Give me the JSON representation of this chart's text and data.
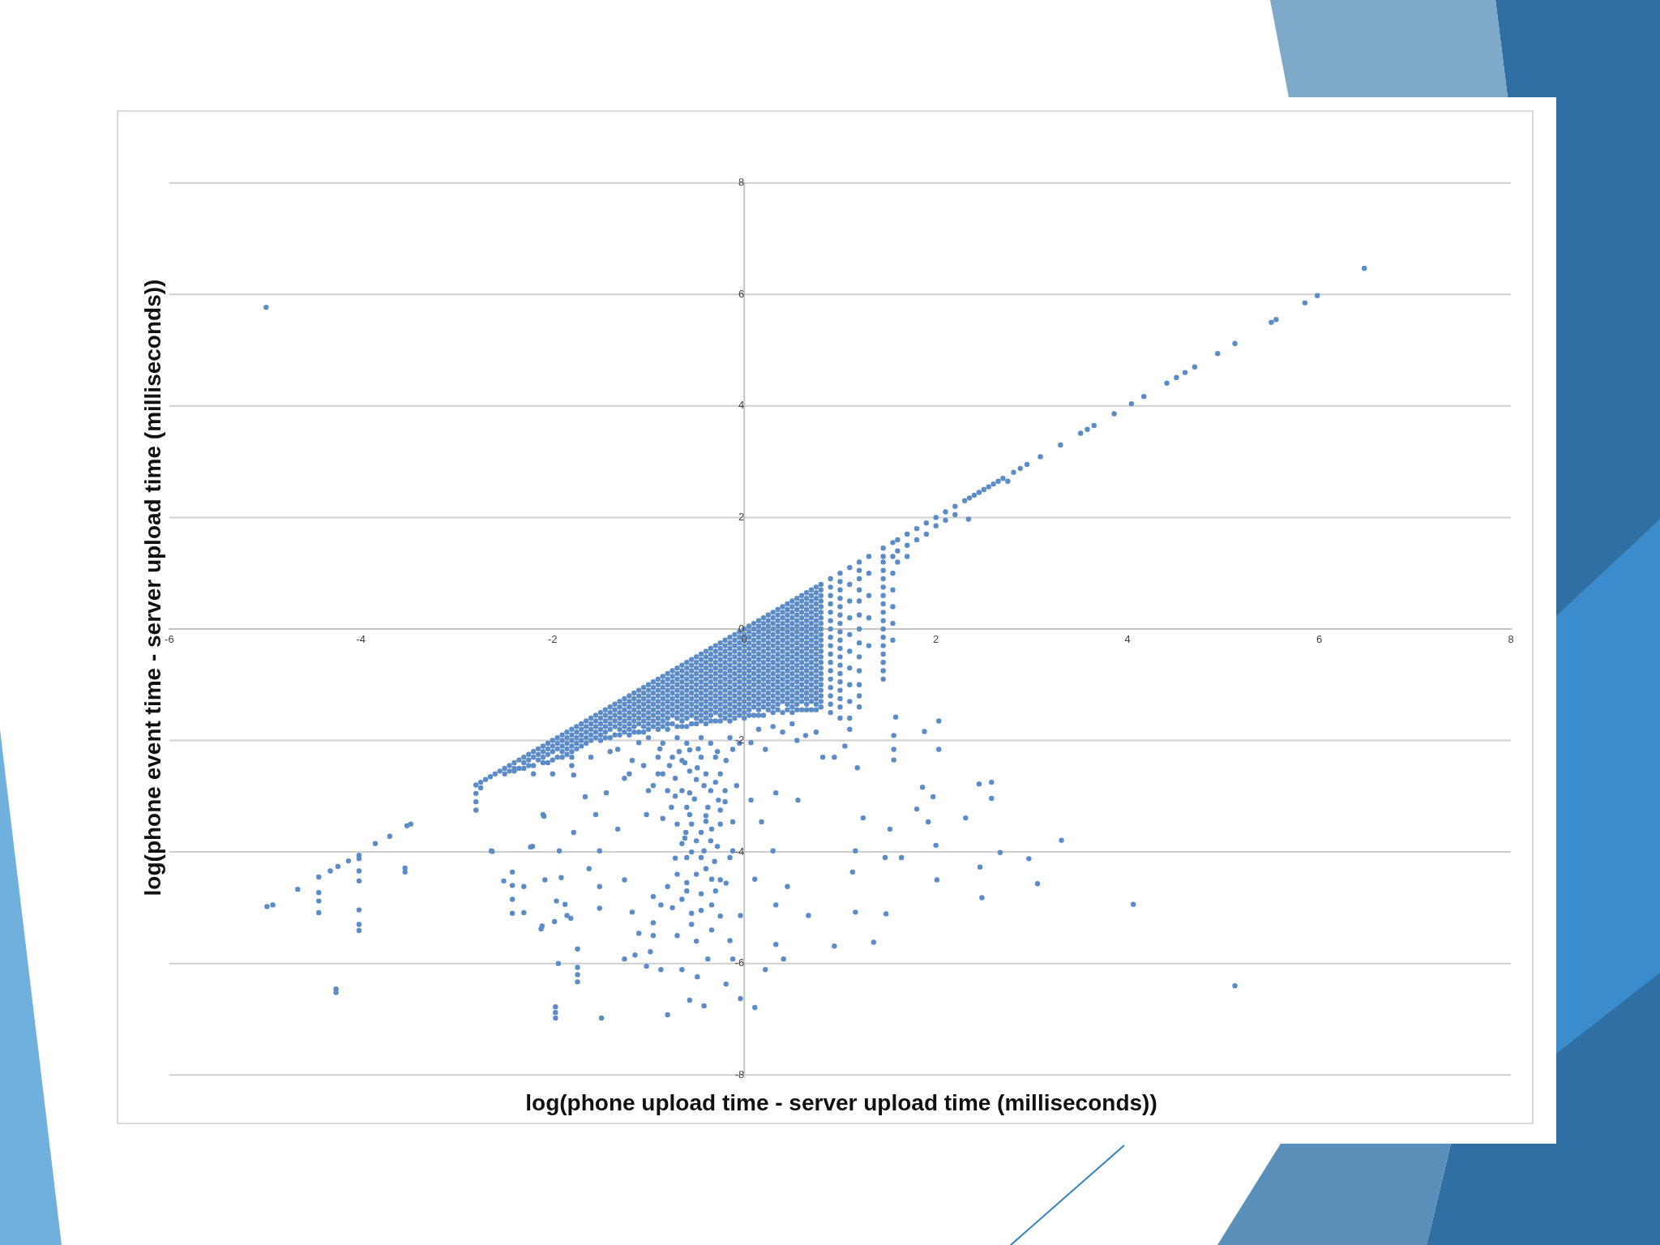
{
  "chart_data": {
    "type": "scatter",
    "xlabel": "log(phone upload time - server upload time (milliseconds))",
    "ylabel": "log(phone event time - server upload time (milliseconds))",
    "color": "#5b8cc8",
    "marker": "circle",
    "grid": "y",
    "xlim": [
      -6,
      8
    ],
    "ylim": [
      -8,
      8
    ],
    "xticks": [
      -6,
      -4,
      -2,
      0,
      2,
      4,
      6,
      8
    ],
    "yticks": [
      -8,
      -6,
      -4,
      -2,
      0,
      2,
      4,
      6,
      8
    ],
    "x": [
      -2.8,
      -2.8,
      -2.8,
      -2.8,
      -2.7,
      -2.6,
      -2.5,
      -2.5,
      -2.4,
      -2.4,
      -2.3,
      -2.3,
      -2.2,
      -2.2,
      -2.1,
      -2.1,
      -2,
      -2,
      -2,
      -1.9,
      -1.9,
      -1.9,
      -1.8,
      -1.8,
      -1.8,
      -1.7,
      -1.7,
      -1.7,
      -1.6,
      -1.6,
      -1.6,
      -1.5,
      -1.5,
      -1.5,
      -1.5,
      -1.4,
      -1.4,
      -1.4,
      -1.4,
      -1.3,
      -1.3,
      -1.3,
      -1.3,
      -1.2,
      -1.2,
      -1.2,
      -1.2,
      -1.2,
      -1.1,
      -1.1,
      -1.1,
      -1.1,
      -1.1,
      -1,
      -1,
      -1,
      -1,
      -1,
      -0.9,
      -0.9,
      -0.9,
      -0.9,
      -0.9,
      -0.9,
      -0.8,
      -0.8,
      -0.8,
      -0.8,
      -0.8,
      -0.8,
      -0.7,
      -0.7,
      -0.7,
      -0.7,
      -0.7,
      -0.7,
      -0.6,
      -0.6,
      -0.6,
      -0.6,
      -0.6,
      -0.6,
      -0.6,
      -0.5,
      -0.5,
      -0.5,
      -0.5,
      -0.5,
      -0.5,
      -0.5,
      -0.4,
      -0.4,
      -0.4,
      -0.4,
      -0.4,
      -0.4,
      -0.4,
      -0.4,
      -0.3,
      -0.3,
      -0.3,
      -0.3,
      -0.3,
      -0.3,
      -0.3,
      -0.3,
      -0.2,
      -0.2,
      -0.2,
      -0.2,
      -0.2,
      -0.2,
      -0.2,
      -0.2,
      -0.1,
      -0.1,
      -0.1,
      -0.1,
      -0.1,
      -0.1,
      -0.1,
      -0.1,
      -0.1,
      0,
      0,
      0,
      0,
      0,
      0,
      0,
      0,
      0,
      0.1,
      0.1,
      0.1,
      0.1,
      0.1,
      0.1,
      0.1,
      0.1,
      0.1,
      0.2,
      0.2,
      0.2,
      0.2,
      0.2,
      0.2,
      0.2,
      0.2,
      0.2,
      0.2,
      0.3,
      0.3,
      0.3,
      0.3,
      0.3,
      0.3,
      0.3,
      0.3,
      0.3,
      0.3,
      0.4,
      0.4,
      0.4,
      0.4,
      0.4,
      0.4,
      0.4,
      0.4,
      0.4,
      0.4,
      0.5,
      0.5,
      0.5,
      0.5,
      0.5,
      0.5,
      0.5,
      0.5,
      0.5,
      0.5,
      0.5,
      0.6,
      0.6,
      0.6,
      0.6,
      0.6,
      0.6,
      0.6,
      0.6,
      0.6,
      0.6,
      0.6,
      0.7,
      0.7,
      0.7,
      0.7,
      0.7,
      0.7,
      0.7,
      0.7,
      0.7,
      0.7,
      0.7,
      0.7,
      0.8,
      0.8,
      0.8,
      0.8,
      0.8,
      0.8,
      0.8,
      0.8,
      0.8,
      0.8,
      0.8,
      0.8,
      -2.75,
      -2.75,
      -2.65,
      -2.55,
      -2.45,
      -2.45,
      -2.35,
      -2.35,
      -2.25,
      -2.25,
      -2.15,
      -2.15,
      -2.05,
      -2.05,
      -2.05,
      -1.95,
      -1.95,
      -1.95,
      -1.85,
      -1.85,
      -1.85,
      -1.75,
      -1.75,
      -1.75,
      -1.65,
      -1.65,
      -1.65,
      -1.55,
      -1.55,
      -1.55,
      -1.45,
      -1.45,
      -1.45,
      -1.35,
      -1.35,
      -1.35,
      -1.35,
      -1.25,
      -1.25,
      -1.25,
      -1.25,
      -1.15,
      -1.15,
      -1.15,
      -1.15,
      -1.05,
      -1.05,
      -1.05,
      -1.05,
      -1.05,
      -0.95,
      -0.95,
      -0.95,
      -0.95,
      -0.95,
      -0.85,
      -0.85,
      -0.85,
      -0.85,
      -0.85,
      -0.75,
      -0.75,
      -0.75,
      -0.75,
      -0.75,
      -0.75,
      -0.65,
      -0.65,
      -0.65,
      -0.65,
      -0.65,
      -0.65,
      -0.55,
      -0.55,
      -0.55,
      -0.55,
      -0.55,
      -0.55,
      -0.55,
      -0.45,
      -0.45,
      -0.45,
      -0.45,
      -0.45,
      -0.45,
      -0.45,
      -0.35,
      -0.35,
      -0.35,
      -0.35,
      -0.35,
      -0.35,
      -0.35,
      -0.25,
      -0.25,
      -0.25,
      -0.25,
      -0.25,
      -0.25,
      -0.25,
      -0.25,
      -0.15,
      -0.15,
      -0.15,
      -0.15,
      -0.15,
      -0.15,
      -0.15,
      -0.15,
      -0.05,
      -0.05,
      -0.05,
      -0.05,
      -0.05,
      -0.05,
      -0.05,
      -0.05,
      0.05,
      0.05,
      0.05,
      0.05,
      0.05,
      0.05,
      0.05,
      0.05,
      0.05,
      0.15,
      0.15,
      0.15,
      0.15,
      0.15,
      0.15,
      0.15,
      0.15,
      0.15,
      0.25,
      0.25,
      0.25,
      0.25,
      0.25,
      0.25,
      0.25,
      0.25,
      0.25,
      0.35,
      0.35,
      0.35,
      0.35,
      0.35,
      0.35,
      0.35,
      0.35,
      0.35,
      0.35,
      0.45,
      0.45,
      0.45,
      0.45,
      0.45,
      0.45,
      0.45,
      0.45,
      0.45,
      0.45,
      0.55,
      0.55,
      0.55,
      0.55,
      0.55,
      0.55,
      0.55,
      0.55,
      0.55,
      0.55,
      0.55,
      0.65,
      0.65,
      0.65,
      0.65,
      0.65,
      0.65,
      0.65,
      0.65,
      0.65,
      0.65,
      0.65,
      0.75,
      0.75,
      0.75,
      0.75,
      0.75,
      0.75,
      0.75,
      0.75,
      0.75,
      0.75,
      0.75,
      0.75,
      0.9,
      0.9,
      0.9,
      0.9,
      0.9,
      0.9,
      0.9,
      0.9,
      0.9,
      1,
      1,
      1,
      1,
      1,
      1,
      1,
      1,
      1,
      1,
      1.1,
      1.1,
      1.1,
      1.1,
      1.1,
      1.1,
      1.1,
      1.1,
      1.1,
      1.1,
      1.1,
      1.2,
      1.2,
      1.2,
      1.2,
      1.2,
      1.2,
      1.2,
      1.3,
      1.3,
      1.3,
      1.3,
      1.3,
      1.45,
      1.45,
      1.45,
      1.45,
      1.45,
      1.45,
      1.45,
      1.45,
      1.45,
      1.55,
      1.55,
      1.55,
      1.55,
      1.55,
      1.55,
      1.55,
      1.6,
      1.6,
      1.6,
      1.7,
      1.7,
      1.7,
      1.8,
      1.8,
      1.9,
      1.9,
      2,
      2,
      2.1,
      2.1,
      2.2,
      2.2,
      2.34,
      2.3,
      2.35,
      2.4,
      2.45,
      2.5,
      2.55,
      2.6,
      2.65,
      2.7,
      2.75,
      2.81,
      2.88,
      2.95,
      3.09,
      3.3,
      3.51,
      3.58,
      3.65,
      3.86,
      4.04,
      4.17,
      4.41,
      4.51,
      4.6,
      4.7,
      4.94,
      5.12,
      5.5,
      5.55,
      5.85,
      5.98,
      6.47,
      -4.98,
      -4.92,
      -4.66,
      -4.44,
      -4.44,
      -4.44,
      -4.44,
      -4.32,
      -4.24,
      -4.13,
      -4.02,
      -4.02,
      -4.02,
      -4.02,
      -4.02,
      -4.02,
      -4.02,
      -3.85,
      -3.7,
      -3.52,
      -3.48,
      -3.54,
      -3.54,
      -4.26,
      -4.26,
      -2.63,
      -2.42,
      -2.42,
      -2.42,
      -2.42,
      -2.51,
      -2.3,
      -2.3,
      -2.21,
      -2.09,
      -1.97,
      -1.97,
      -1.97,
      -1.94,
      -1.74,
      -1.74,
      -1.74,
      -1.74,
      -1.91,
      -1.87,
      -1.81,
      -1.98,
      -2.12,
      -4.99,
      -0.57,
      -0.57,
      -0.57,
      -0.57,
      -0.61,
      -0.65,
      -0.72,
      -0.49,
      -0.42,
      -0.38,
      -0.27,
      -0.19,
      -0.12,
      -0.08,
      -0.12,
      -0.34,
      -0.42,
      -0.31,
      -0.34,
      -0.34,
      -0.34,
      -0.38,
      -0.49,
      -0.42,
      -0.57,
      -0.8,
      -0.19,
      -0.04,
      0.11,
      -0.72,
      -0.8,
      -0.87,
      -0.95,
      -0.98,
      -0.87,
      -0.65,
      -0.19,
      -0.12,
      -0.15,
      -0.04,
      -0.12,
      -0.76,
      -0.95,
      -1.02,
      -1.1,
      -1.17,
      -1.25,
      -1.32,
      -1.44,
      -1.55,
      -1.51,
      -1.51,
      -1.51,
      -1.62,
      -1.78,
      -1.93,
      -2.08,
      -1.96,
      -1.85,
      -2.11,
      -2.23,
      -2.1,
      -2.64,
      -1.78,
      -1.66,
      -1.32,
      -1.25,
      -1.17,
      -1.1,
      -1.25,
      -1.14,
      -1.02,
      -1.49,
      0.11,
      0.18,
      0.07,
      0.07,
      0.22,
      0.33,
      0.3,
      0.45,
      0.33,
      0.33,
      0.41,
      0.22,
      0.56,
      0.67,
      0.94,
      1.35,
      0.64,
      0.82,
      0.94,
      1.18,
      1.24,
      1.16,
      1.13,
      1.16,
      1.48,
      1.52,
      1.47,
      1.64,
      1.56,
      1.56,
      1.58,
      1.88,
      2.03,
      2.03,
      1.86,
      1.97,
      1.8,
      1.92,
      2,
      2.01,
      2.45,
      2.58,
      2.58,
      2.31,
      2.46,
      2.48,
      2.67,
      3.31,
      2.97,
      3.06,
      4.06,
      5.12,
      -1,
      -0.7,
      -0.45,
      -0.15,
      -0.85,
      -0.6,
      -0.35,
      -0.05,
      -0.9,
      -0.75,
      -0.45,
      -0.3,
      -0.85,
      -0.4,
      -0.25,
      -0.8,
      -0.65,
      -0.35,
      -0.2,
      -0.6,
      -0.25,
      -0.7,
      -0.55,
      -0.4,
      -0.25,
      -0.65,
      -0.5,
      -0.35,
      -0.6,
      -0.45,
      -0.15,
      -0.7,
      -0.5,
      -0.6,
      -0.3,
      -0.75,
      -0.45,
      -0.55,
      -0.95,
      -0.95,
      -2.2,
      -2,
      -1.8,
      -1.6,
      -1.4,
      0.15,
      0.3,
      0.5,
      0.4,
      0.55,
      0.75,
      1.05,
      1.56,
      -2.4,
      -2.3,
      -2.2,
      -2.1,
      -2.1,
      -2,
      -1.9,
      -1.9,
      -1.8,
      -1.8,
      -1.8,
      -1.7,
      -1.7,
      -1.6,
      -1.6,
      -1.5,
      -1.5,
      -1.4,
      -1.4,
      -1.3,
      -1.3,
      -1.3,
      -1.2,
      -1.2,
      -1.2,
      -1.1,
      -1.1,
      -1.1,
      -1,
      -1,
      -1,
      -1,
      -0.9,
      -0.9,
      -0.9,
      -0.9,
      -0.8,
      -0.8,
      -0.8,
      -0.8,
      -0.8,
      -0.7,
      -0.7,
      -0.7,
      -0.7,
      -0.7,
      -0.6,
      -0.6,
      -0.6,
      -0.6,
      -0.6,
      -0.5,
      -0.5,
      -0.5,
      -0.5,
      -0.5,
      -0.5,
      -0.4,
      -0.4,
      -0.4,
      -0.4,
      -0.4,
      -0.4,
      -0.3,
      -0.3,
      -0.3,
      -0.3,
      -0.3,
      -0.3,
      -0.2,
      -0.2,
      -0.2,
      -0.2,
      -0.2,
      -0.2,
      -0.2,
      -0.1,
      -0.1,
      -0.1,
      -0.1,
      -0.1,
      -0.1,
      -0.1,
      0,
      0,
      0,
      0,
      0,
      0,
      0,
      0,
      0.1,
      0.1,
      0.1,
      0.1,
      0.1,
      0.1,
      0.1,
      0.1,
      0.2,
      0.2,
      0.2,
      0.2,
      0.2,
      0.2,
      0.2,
      0.2,
      0.3,
      0.3,
      0.3,
      0.3,
      0.3,
      0.3,
      0.3,
      0.3,
      0.3,
      0.4,
      0.4,
      0.4,
      0.4,
      0.4,
      0.4,
      0.4,
      0.4,
      0.4,
      0.5,
      0.5,
      0.5,
      0.5,
      0.5,
      0.5,
      0.5,
      0.5,
      0.5,
      0.5,
      0.6,
      0.6,
      0.6,
      0.6,
      0.6,
      0.6,
      0.6,
      0.6,
      0.6,
      0.6,
      0.7,
      0.7,
      0.7,
      0.7,
      0.7,
      0.7,
      0.7,
      0.7,
      0.7,
      0.7,
      0.8,
      0.8,
      0.8,
      0.8,
      0.8,
      0.8,
      0.8,
      0.8,
      0.8,
      0.8,
      0.8,
      -2.25,
      -2.15,
      -2.05,
      -1.95,
      -1.85,
      -1.85,
      -1.75,
      -1.75,
      -1.65,
      -1.65,
      -1.55,
      -1.55,
      -1.45,
      -1.45,
      -1.45,
      -1.35,
      -1.35,
      -1.25,
      -1.25,
      -1.25,
      -1.15,
      -1.15,
      -1.15,
      -1.15,
      -1.05,
      -1.05,
      -1.05,
      -1.05,
      -0.95,
      -0.95,
      -0.95,
      -0.95,
      -0.85,
      -0.85,
      -0.85,
      -0.85,
      -0.85,
      -0.75,
      -0.75,
      -0.75,
      -0.75,
      -0.65,
      -0.65,
      -0.65,
      -0.65,
      -0.65,
      -0.65,
      -0.55,
      -0.55,
      -0.55,
      -0.55,
      -0.55,
      -0.45,
      -0.45,
      -0.45,
      -0.45,
      -0.45,
      -0.45,
      -0.35,
      -0.35,
      -0.35,
      -0.35,
      -0.35,
      -0.35,
      -0.35,
      -0.25,
      -0.25,
      -0.25,
      -0.25,
      -0.25,
      -0.25,
      -0.25,
      -0.15,
      -0.15,
      -0.15,
      -0.15,
      -0.15,
      -0.15,
      -0.15,
      -0.15,
      -0.05,
      -0.05,
      -0.05,
      -0.05,
      -0.05,
      -0.05,
      -0.05,
      -0.05,
      0.05,
      0.05,
      0.05,
      0.05,
      0.05,
      0.05,
      0.05,
      0.05,
      0.15,
      0.15,
      0.15,
      0.15,
      0.15,
      0.15,
      0.15,
      0.15,
      0.15,
      0.25,
      0.25,
      0.25,
      0.25,
      0.25,
      0.25,
      0.25,
      0.25,
      0.25,
      0.35,
      0.35,
      0.35,
      0.35,
      0.35,
      0.35,
      0.35,
      0.35,
      0.35,
      0.45,
      0.45,
      0.45,
      0.45,
      0.45,
      0.45,
      0.45,
      0.45,
      0.45,
      0.45,
      0.55,
      0.55,
      0.55,
      0.55,
      0.55,
      0.55,
      0.55,
      0.55,
      0.55,
      0.55,
      0.65,
      0.65,
      0.65,
      0.65,
      0.65,
      0.65,
      0.65,
      0.65,
      0.65,
      0.65,
      0.65,
      0.75,
      0.75,
      0.75,
      0.75,
      0.75,
      0.75,
      0.75,
      0.75,
      0.75,
      0.75,
      0.75,
      0.9,
      0.9,
      0.9,
      0.9,
      0.9,
      0.9,
      0.9,
      0.9,
      1,
      1,
      1,
      1,
      1,
      1,
      1,
      1,
      1.2,
      1.2,
      1.2,
      1.2,
      1.2,
      1.2,
      1.45,
      1.45,
      1.45,
      1.45,
      1.45,
      1.45,
      1.45,
      1.45,
      -0.88,
      -0.68,
      -0.48,
      -0.28,
      -0.78,
      -0.62,
      -0.5,
      -0.3,
      -0.9,
      -0.72,
      -0.52,
      -0.4,
      -0.2,
      -0.85,
      -0.62,
      -0.45,
      -0.28,
      -0.55,
      -0.4,
      -0.6,
      -0.25,
      -0.45,
      -0.65,
      -0.55,
      -0.25,
      -0.7,
      -0.5,
      -1.05,
      -1.2,
      -1
    ],
    "values": [
      -2.8,
      -2.95,
      -3.1,
      -3.25,
      -2.7,
      -2.6,
      -2.5,
      -2.6,
      -2.4,
      -2.55,
      -2.3,
      -2.5,
      -2.2,
      -2.45,
      -2.1,
      -2.3,
      -2,
      -2.2,
      -2.35,
      -1.9,
      -2.1,
      -2.3,
      -1.8,
      -2,
      -2.2,
      -1.7,
      -1.9,
      -2.1,
      -1.6,
      -1.8,
      -2,
      -1.5,
      -1.7,
      -1.9,
      -2,
      -1.4,
      -1.6,
      -1.8,
      -1.95,
      -1.3,
      -1.5,
      -1.7,
      -1.9,
      -1.2,
      -1.4,
      -1.6,
      -1.8,
      -1.9,
      -1.1,
      -1.3,
      -1.5,
      -1.7,
      -1.85,
      -1,
      -1.2,
      -1.4,
      -1.6,
      -1.8,
      -0.9,
      -1.1,
      -1.3,
      -1.5,
      -1.7,
      -1.8,
      -0.8,
      -1,
      -1.2,
      -1.4,
      -1.6,
      -1.8,
      -0.7,
      -0.9,
      -1.1,
      -1.3,
      -1.5,
      -1.75,
      -0.6,
      -0.8,
      -1,
      -1.2,
      -1.4,
      -1.6,
      -1.75,
      -0.5,
      -0.7,
      -0.9,
      -1.1,
      -1.3,
      -1.5,
      -1.7,
      -0.4,
      -0.6,
      -0.8,
      -1,
      -1.2,
      -1.4,
      -1.6,
      -1.7,
      -0.3,
      -0.5,
      -0.7,
      -0.9,
      -1.1,
      -1.3,
      -1.5,
      -1.65,
      -0.2,
      -0.4,
      -0.6,
      -0.8,
      -1,
      -1.2,
      -1.4,
      -1.6,
      -0.1,
      -0.3,
      -0.5,
      -0.7,
      -0.9,
      -1.1,
      -1.3,
      -1.5,
      -1.6,
      0,
      -0.2,
      -0.4,
      -0.6,
      -0.8,
      -1,
      -1.2,
      -1.4,
      -1.6,
      0.1,
      -0.1,
      -0.3,
      -0.5,
      -0.7,
      -0.9,
      -1.1,
      -1.3,
      -1.55,
      0.2,
      0,
      -0.2,
      -0.4,
      -0.6,
      -0.8,
      -1,
      -1.2,
      -1.4,
      -1.55,
      0.3,
      0.1,
      -0.1,
      -0.3,
      -0.5,
      -0.7,
      -0.9,
      -1.1,
      -1.3,
      -1.5,
      0.4,
      0.2,
      0,
      -0.2,
      -0.4,
      -0.6,
      -0.8,
      -1,
      -1.2,
      -1.5,
      0.5,
      0.3,
      0.1,
      -0.1,
      -0.3,
      -0.5,
      -0.7,
      -0.9,
      -1.1,
      -1.3,
      -1.5,
      0.6,
      0.4,
      0.2,
      0,
      -0.2,
      -0.4,
      -0.6,
      -0.8,
      -1,
      -1.2,
      -1.45,
      0.7,
      0.5,
      0.3,
      0.1,
      -0.1,
      -0.3,
      -0.5,
      -0.7,
      -0.9,
      -1.1,
      -1.3,
      -1.45,
      0.8,
      0.6,
      0.4,
      0.2,
      0,
      -0.2,
      -0.4,
      -0.6,
      -0.8,
      -1,
      -1.2,
      -1.4,
      -2.75,
      -2.85,
      -2.65,
      -2.55,
      -2.45,
      -2.55,
      -2.35,
      -2.5,
      -2.25,
      -2.45,
      -2.15,
      -2.35,
      -2.05,
      -2.25,
      -2.4,
      -1.95,
      -2.15,
      -2.3,
      -1.85,
      -2.05,
      -2.25,
      -1.75,
      -1.95,
      -2.15,
      -1.65,
      -1.85,
      -2.05,
      -1.55,
      -1.75,
      -1.95,
      -1.45,
      -1.65,
      -1.85,
      -1.35,
      -1.55,
      -1.75,
      -1.9,
      -1.25,
      -1.45,
      -1.65,
      -1.85,
      -1.15,
      -1.35,
      -1.55,
      -1.75,
      -1.05,
      -1.25,
      -1.45,
      -1.65,
      -1.85,
      -0.95,
      -1.15,
      -1.35,
      -1.55,
      -1.75,
      -0.85,
      -1.05,
      -1.25,
      -1.45,
      -1.65,
      -0.75,
      -0.95,
      -1.15,
      -1.35,
      -1.55,
      -1.7,
      -0.65,
      -0.85,
      -1.05,
      -1.25,
      -1.45,
      -1.65,
      -0.55,
      -0.75,
      -0.95,
      -1.15,
      -1.35,
      -1.55,
      -1.7,
      -0.45,
      -0.65,
      -0.85,
      -1.05,
      -1.25,
      -1.45,
      -1.65,
      -0.35,
      -0.55,
      -0.75,
      -0.95,
      -1.15,
      -1.35,
      -1.55,
      -0.25,
      -0.45,
      -0.65,
      -0.85,
      -1.05,
      -1.25,
      -1.45,
      -1.65,
      -0.15,
      -0.35,
      -0.55,
      -0.75,
      -0.95,
      -1.15,
      -1.35,
      -1.55,
      -0.05,
      -0.25,
      -0.45,
      -0.65,
      -0.85,
      -1.05,
      -1.25,
      -1.45,
      0.05,
      -0.15,
      -0.35,
      -0.55,
      -0.75,
      -0.95,
      -1.15,
      -1.35,
      -1.55,
      0.15,
      -0.05,
      -0.25,
      -0.45,
      -0.65,
      -0.85,
      -1.05,
      -1.25,
      -1.45,
      0.25,
      0.05,
      -0.15,
      -0.35,
      -0.55,
      -0.75,
      -0.95,
      -1.15,
      -1.35,
      0.35,
      0.15,
      -0.05,
      -0.25,
      -0.45,
      -0.65,
      -0.85,
      -1.05,
      -1.25,
      -1.45,
      0.45,
      0.25,
      0.05,
      -0.15,
      -0.35,
      -0.55,
      -0.75,
      -0.95,
      -1.15,
      -1.35,
      0.55,
      0.35,
      0.15,
      -0.05,
      -0.25,
      -0.45,
      -0.65,
      -0.85,
      -1.05,
      -1.25,
      -1.45,
      0.65,
      0.45,
      0.25,
      0.05,
      -0.15,
      -0.35,
      -0.55,
      -0.75,
      -0.95,
      -1.15,
      -1.35,
      0.75,
      0.55,
      0.35,
      0.15,
      -0.05,
      -0.25,
      -0.45,
      -0.65,
      -0.85,
      -1.05,
      -1.25,
      -1.45,
      0.9,
      0.6,
      0.3,
      0,
      -0.3,
      -0.6,
      -0.9,
      -1.2,
      -1.5,
      1,
      0.7,
      0.4,
      0.1,
      -0.2,
      -0.5,
      -0.8,
      -1.1,
      -1.4,
      -1.6,
      1.1,
      0.8,
      0.5,
      0.2,
      -0.1,
      -0.4,
      -0.7,
      -1,
      -1.3,
      -1.6,
      -1.8,
      1.2,
      0.9,
      0.5,
      0,
      -0.5,
      -1,
      -1.4,
      1.3,
      1,
      0.6,
      0.2,
      -0.3,
      1.45,
      1.2,
      0.9,
      0.6,
      0.3,
      0,
      -0.3,
      -0.6,
      -0.9,
      1.55,
      1.3,
      1,
      0.7,
      0.4,
      0.1,
      -0.2,
      1.6,
      1.4,
      1.2,
      1.7,
      1.5,
      1.3,
      1.8,
      1.6,
      1.9,
      1.7,
      2,
      1.85,
      2.1,
      1.95,
      2.2,
      2.05,
      1.97,
      2.3,
      2.35,
      2.4,
      2.45,
      2.5,
      2.55,
      2.6,
      2.65,
      2.7,
      2.65,
      2.81,
      2.88,
      2.95,
      3.09,
      3.3,
      3.51,
      3.58,
      3.65,
      3.86,
      4.04,
      4.17,
      4.41,
      4.51,
      4.6,
      4.7,
      4.94,
      5.12,
      5.5,
      5.55,
      5.85,
      5.98,
      6.47,
      -4.98,
      -4.95,
      -4.67,
      -4.45,
      -4.73,
      -4.88,
      -5.09,
      -4.34,
      -4.26,
      -4.16,
      -4.06,
      -4.12,
      -4.34,
      -4.52,
      -5.04,
      -5.3,
      -5.41,
      -3.85,
      -3.72,
      -3.53,
      -3.5,
      -4.29,
      -4.36,
      -6.46,
      -6.52,
      -3.99,
      -4.36,
      -4.6,
      -4.85,
      -5.1,
      -4.52,
      -4.62,
      -5.09,
      -3.9,
      -3.36,
      -6.78,
      -6.88,
      -6.98,
      -6,
      -5.74,
      -6.07,
      -6.2,
      -6.33,
      -4.46,
      -4.94,
      -5.19,
      -5.25,
      -5.38,
      5.77,
      -2.17,
      -2.55,
      -2.94,
      -3.33,
      -3.65,
      -2.36,
      -2.68,
      -2.49,
      -2.81,
      -3.2,
      -3.07,
      -2.36,
      -2.16,
      -2.81,
      -3.46,
      -3.59,
      -3.98,
      -4.17,
      -4.49,
      -4.95,
      -5.4,
      -5.92,
      -6.24,
      -6.76,
      -6.66,
      -6.92,
      -6.37,
      -6.63,
      -6.79,
      -4.11,
      -4.62,
      -4.95,
      -5.27,
      -5.79,
      -6.11,
      -6.11,
      -4.56,
      -3.98,
      -5.59,
      -5.14,
      -5.92,
      -3.2,
      -2.81,
      -3.33,
      -2.04,
      -2.36,
      -2.68,
      -2.16,
      -2.94,
      -3.33,
      -3.98,
      -4.62,
      -5.01,
      -4.3,
      -3.65,
      -3.98,
      -4.5,
      -4.88,
      -5.14,
      -5.33,
      -3.91,
      -3.33,
      -3.98,
      -2.62,
      -3.01,
      -3.59,
      -4.5,
      -5.08,
      -5.46,
      -5.92,
      -5.85,
      -6.05,
      -6.98,
      -4.49,
      -3.46,
      -3.07,
      -2.04,
      -2.16,
      -2.94,
      -3.98,
      -4.62,
      -4.95,
      -5.66,
      -5.92,
      -6.11,
      -3.07,
      -5.14,
      -5.69,
      -5.62,
      -1.91,
      -2.3,
      -2.3,
      -2.49,
      -3.39,
      -3.98,
      -4.36,
      -5.08,
      -5.11,
      -3.59,
      -4.1,
      -4.1,
      -1.91,
      -2.16,
      -1.58,
      -1.84,
      -1.65,
      -2.16,
      -2.84,
      -3.01,
      -3.23,
      -3.46,
      -3.88,
      -4.5,
      -2.78,
      -2.75,
      -3.04,
      -3.39,
      -4.27,
      -4.82,
      -4.01,
      -3.79,
      -4.12,
      -4.57,
      -4.94,
      -6.4,
      -1.95,
      -1.95,
      -1.95,
      -1.95,
      -2.05,
      -2.05,
      -2.05,
      -2.05,
      -2.3,
      -2.3,
      -2.3,
      -2.3,
      -2.6,
      -2.6,
      -2.6,
      -2.9,
      -2.9,
      -2.9,
      -2.9,
      -3.2,
      -3.25,
      -3.5,
      -3.5,
      -3.45,
      -3.5,
      -3.85,
      -3.8,
      -3.8,
      -4.1,
      -4.1,
      -4.1,
      -4.4,
      -4.4,
      -4.7,
      -4.7,
      -5,
      -5.05,
      -5.3,
      -4.8,
      -5.5,
      -2.6,
      -2.6,
      -2.45,
      -2.3,
      -2.2,
      -1.8,
      -1.75,
      -1.7,
      -1.85,
      -2,
      -1.85,
      -2.1,
      -2.35,
      -2.5,
      -2.4,
      -2.3,
      -2.2,
      -2.4,
      -2.1,
      -2,
      -2.2,
      -1.9,
      -2.1,
      -2.3,
      -1.8,
      -2,
      -1.7,
      -1.9,
      -1.6,
      -1.8,
      -1.5,
      -1.7,
      -1.4,
      -1.6,
      -1.8,
      -1.3,
      -1.5,
      -1.7,
      -1.2,
      -1.4,
      -1.6,
      -1.1,
      -1.3,
      -1.5,
      -1.7,
      -1,
      -1.2,
      -1.4,
      -1.6,
      -0.9,
      -1.1,
      -1.3,
      -1.5,
      -1.7,
      -0.8,
      -1,
      -1.2,
      -1.4,
      -1.6,
      -0.7,
      -0.9,
      -1.1,
      -1.3,
      -1.5,
      -0.6,
      -0.8,
      -1,
      -1.2,
      -1.4,
      -1.6,
      -0.5,
      -0.7,
      -0.9,
      -1.1,
      -1.3,
      -1.5,
      -0.4,
      -0.6,
      -0.8,
      -1,
      -1.2,
      -1.4,
      -0.3,
      -0.5,
      -0.7,
      -0.9,
      -1.1,
      -1.3,
      -1.5,
      -0.2,
      -0.4,
      -0.6,
      -0.8,
      -1,
      -1.2,
      -1.4,
      -0.1,
      -0.3,
      -0.5,
      -0.7,
      -0.9,
      -1.1,
      -1.3,
      -1.5,
      0,
      -0.2,
      -0.4,
      -0.6,
      -0.8,
      -1,
      -1.2,
      -1.4,
      0.1,
      -0.1,
      -0.3,
      -0.5,
      -0.7,
      -0.9,
      -1.1,
      -1.3,
      0.2,
      0,
      -0.2,
      -0.4,
      -0.6,
      -0.8,
      -1,
      -1.2,
      -1.4,
      0.3,
      0.1,
      -0.1,
      -0.3,
      -0.5,
      -0.7,
      -0.9,
      -1.1,
      -1.3,
      0.4,
      0.2,
      0,
      -0.2,
      -0.4,
      -0.6,
      -0.8,
      -1,
      -1.2,
      -1.4,
      0.5,
      0.3,
      0.1,
      -0.1,
      -0.3,
      -0.5,
      -0.7,
      -0.9,
      -1.1,
      -1.3,
      0.6,
      0.4,
      0.2,
      0,
      -0.2,
      -0.4,
      -0.6,
      -0.8,
      -1,
      -1.2,
      0.7,
      0.5,
      0.3,
      0.1,
      -0.1,
      -0.3,
      -0.5,
      -0.7,
      -0.9,
      -1.1,
      -1.3,
      -2.35,
      -2.25,
      -2.15,
      -2.05,
      -1.95,
      -2.15,
      -1.85,
      -2.05,
      -1.75,
      -1.95,
      -1.65,
      -1.85,
      -1.55,
      -1.75,
      -1.95,
      -1.45,
      -1.65,
      -1.35,
      -1.55,
      -1.75,
      -1.25,
      -1.45,
      -1.65,
      -1.85,
      -1.15,
      -1.35,
      -1.55,
      -1.75,
      -1.05,
      -1.25,
      -1.45,
      -1.65,
      -0.95,
      -1.15,
      -1.35,
      -1.55,
      -1.75,
      -0.85,
      -1.05,
      -1.25,
      -1.45,
      -0.75,
      -0.95,
      -1.15,
      -1.35,
      -1.55,
      -1.75,
      -0.65,
      -0.85,
      -1.05,
      -1.25,
      -1.45,
      -0.55,
      -0.75,
      -0.95,
      -1.15,
      -1.35,
      -1.55,
      -0.45,
      -0.65,
      -0.85,
      -1.05,
      -1.25,
      -1.45,
      -1.65,
      -0.35,
      -0.55,
      -0.75,
      -0.95,
      -1.15,
      -1.35,
      -1.55,
      -0.25,
      -0.45,
      -0.65,
      -0.85,
      -1.05,
      -1.25,
      -1.45,
      -1.65,
      -0.15,
      -0.35,
      -0.55,
      -0.75,
      -0.95,
      -1.15,
      -1.35,
      -1.55,
      -0.05,
      -0.25,
      -0.45,
      -0.65,
      -0.85,
      -1.05,
      -1.25,
      -1.45,
      0.05,
      -0.15,
      -0.35,
      -0.55,
      -0.75,
      -0.95,
      -1.15,
      -1.35,
      -1.55,
      0.15,
      -0.05,
      -0.25,
      -0.45,
      -0.65,
      -0.85,
      -1.05,
      -1.25,
      -1.45,
      0.25,
      0.05,
      -0.15,
      -0.35,
      -0.55,
      -0.75,
      -0.95,
      -1.15,
      -1.35,
      0.35,
      0.15,
      -0.05,
      -0.25,
      -0.45,
      -0.65,
      -0.85,
      -1.05,
      -1.25,
      -1.45,
      0.45,
      0.25,
      0.05,
      -0.15,
      -0.35,
      -0.55,
      -0.75,
      -0.95,
      -1.15,
      -1.35,
      0.55,
      0.35,
      0.15,
      -0.05,
      -0.25,
      -0.45,
      -0.65,
      -0.85,
      -1.05,
      -1.25,
      -1.45,
      0.65,
      0.45,
      0.25,
      0.05,
      -0.15,
      -0.35,
      -0.55,
      -0.75,
      -0.95,
      -1.15,
      -1.35,
      0.75,
      0.45,
      0.15,
      -0.15,
      -0.45,
      -0.75,
      -1.05,
      -1.35,
      0.85,
      0.55,
      0.25,
      -0.05,
      -0.35,
      -0.65,
      -0.95,
      -1.25,
      1.05,
      0.7,
      0.25,
      -0.25,
      -0.75,
      -1.2,
      1.3,
      1.05,
      0.75,
      0.45,
      0.15,
      -0.15,
      -0.45,
      -0.75,
      -2.15,
      -2.2,
      -2.15,
      -2.2,
      -2.45,
      -2.4,
      -2.7,
      -2.75,
      -2.6,
      -3,
      -3.05,
      -3.35,
      -3.1,
      -3.4,
      -3.75,
      -3.65,
      -3.9,
      -4,
      -4.3,
      -4.55,
      -4.5,
      -4.75,
      -4.85,
      -5.1,
      -5.15,
      -5.5,
      -5.6,
      -2.45,
      -2.6,
      -2.9
    ]
  }
}
